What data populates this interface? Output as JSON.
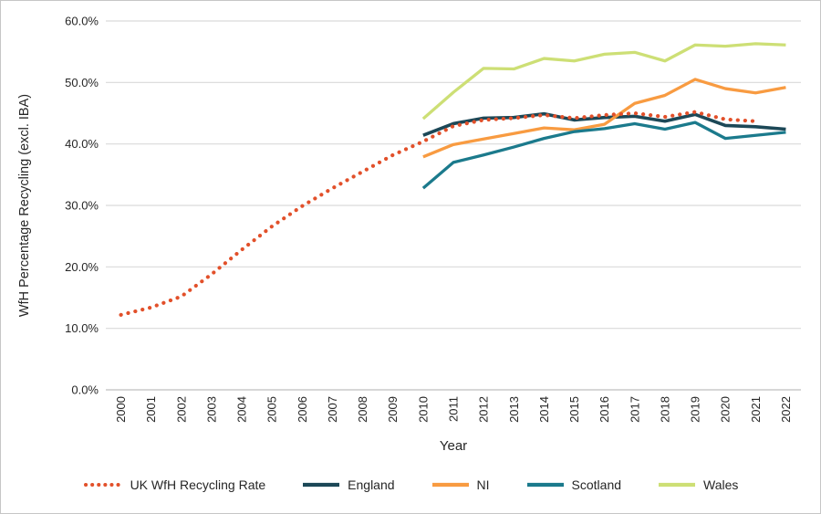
{
  "chart_data": {
    "type": "line",
    "title": "",
    "xlabel": "Year",
    "ylabel": "WfH Percentage Recycling (excl. IBA)",
    "x_categories": [
      "2000",
      "2001",
      "2002",
      "2003",
      "2004",
      "2005",
      "2006",
      "2007",
      "2008",
      "2009",
      "2010",
      "2011",
      "2012",
      "2013",
      "2014",
      "2015",
      "2016",
      "2017",
      "2018",
      "2019",
      "2020",
      "2021",
      "2022"
    ],
    "y_ticks": [
      "0.0%",
      "10.0%",
      "20.0%",
      "30.0%",
      "40.0%",
      "50.0%",
      "60.0%"
    ],
    "ylim": [
      0,
      60
    ],
    "grid": "horizontal",
    "gridline_color": "#d9d9d9",
    "axis_line_color": "#bfbfbf",
    "legend_position": "bottom",
    "series": [
      {
        "name": "UK WfH Recycling Rate",
        "style": "dotted",
        "color": "#e2502a",
        "values": [
          12.2,
          13.4,
          15.2,
          18.8,
          22.8,
          26.6,
          29.9,
          32.8,
          35.5,
          38.2,
          40.4,
          42.9,
          43.9,
          44.2,
          44.7,
          44.2,
          44.7,
          45.0,
          44.4,
          45.2,
          44.0,
          43.7,
          null
        ]
      },
      {
        "name": "England",
        "style": "solid",
        "color": "#1c4857",
        "values": [
          null,
          null,
          null,
          null,
          null,
          null,
          null,
          null,
          null,
          null,
          41.4,
          43.3,
          44.2,
          44.3,
          44.9,
          43.9,
          44.3,
          44.5,
          43.7,
          44.8,
          43.0,
          42.8,
          42.4
        ]
      },
      {
        "name": "NI",
        "style": "solid",
        "color": "#f89b41",
        "values": [
          null,
          null,
          null,
          null,
          null,
          null,
          null,
          null,
          null,
          null,
          37.9,
          39.9,
          40.8,
          41.7,
          42.6,
          42.3,
          43.2,
          46.6,
          47.9,
          50.5,
          49.0,
          48.3,
          49.2
        ]
      },
      {
        "name": "Scotland",
        "style": "solid",
        "color": "#1b7a8c",
        "values": [
          null,
          null,
          null,
          null,
          null,
          null,
          null,
          null,
          null,
          null,
          32.8,
          37.0,
          38.2,
          39.5,
          40.9,
          42.0,
          42.5,
          43.3,
          42.4,
          43.5,
          40.9,
          41.4,
          41.9
        ]
      },
      {
        "name": "Wales",
        "style": "solid",
        "color": "#cddf75",
        "values": [
          null,
          null,
          null,
          null,
          null,
          null,
          null,
          null,
          null,
          null,
          44.1,
          48.4,
          52.3,
          52.2,
          53.9,
          53.5,
          54.6,
          54.9,
          53.5,
          56.1,
          55.9,
          56.3,
          56.1
        ]
      }
    ]
  }
}
